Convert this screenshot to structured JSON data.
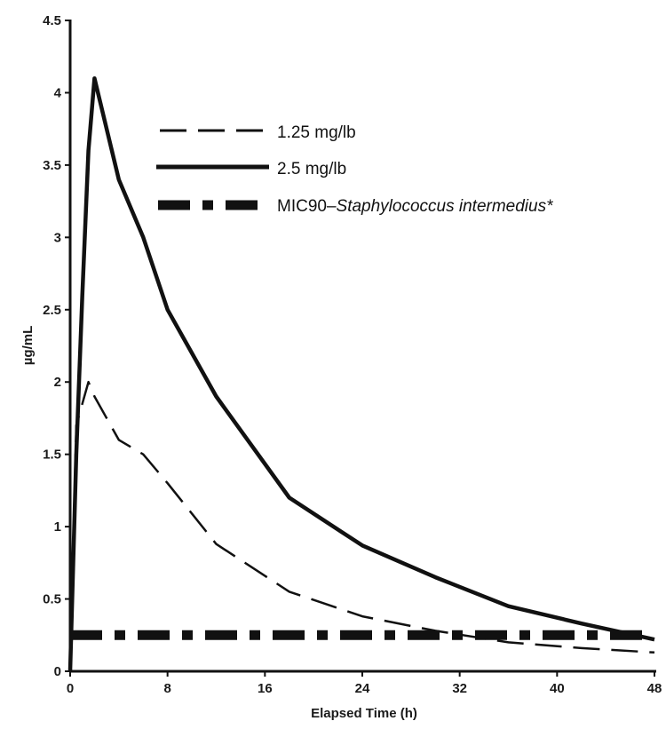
{
  "chart_data": {
    "type": "line",
    "xlabel": "Elapsed Time (h)",
    "ylabel": "µg/mL",
    "xlim": [
      0,
      48
    ],
    "ylim": [
      0,
      4.5
    ],
    "x_ticks": [
      "0",
      "8",
      "16",
      "24",
      "32",
      "40",
      "48"
    ],
    "y_ticks": [
      "0",
      "0.5",
      "1",
      "1.5",
      "2",
      "2.5",
      "3",
      "3.5",
      "4",
      "4.5"
    ],
    "grid": false,
    "legend_position": "top-right",
    "series": [
      {
        "name": "1.25 mg/lb",
        "style": "dashed",
        "color": "#111111",
        "x": [
          0,
          0.5,
          1,
          1.5,
          2,
          4,
          6,
          8,
          12,
          18,
          24,
          30,
          36,
          42,
          48
        ],
        "y": [
          0,
          1.7,
          1.85,
          2.0,
          1.9,
          1.6,
          1.5,
          1.3,
          0.88,
          0.55,
          0.38,
          0.28,
          0.2,
          0.16,
          0.13
        ]
      },
      {
        "name": "2.5 mg/lb",
        "style": "solid",
        "color": "#111111",
        "x": [
          0,
          0.5,
          1,
          1.5,
          2,
          4,
          6,
          8,
          12,
          18,
          24,
          30,
          36,
          42,
          48
        ],
        "y": [
          0,
          1.5,
          2.6,
          3.6,
          4.1,
          3.4,
          3.0,
          2.5,
          1.9,
          1.2,
          0.87,
          0.65,
          0.45,
          0.33,
          0.22
        ]
      },
      {
        "name_prefix": "MIC90–",
        "name_italic": "Staphylococcus intermedius*",
        "style": "dash-dot",
        "color": "#111111",
        "x": [
          0,
          48
        ],
        "y": [
          0.25,
          0.25
        ]
      }
    ]
  }
}
